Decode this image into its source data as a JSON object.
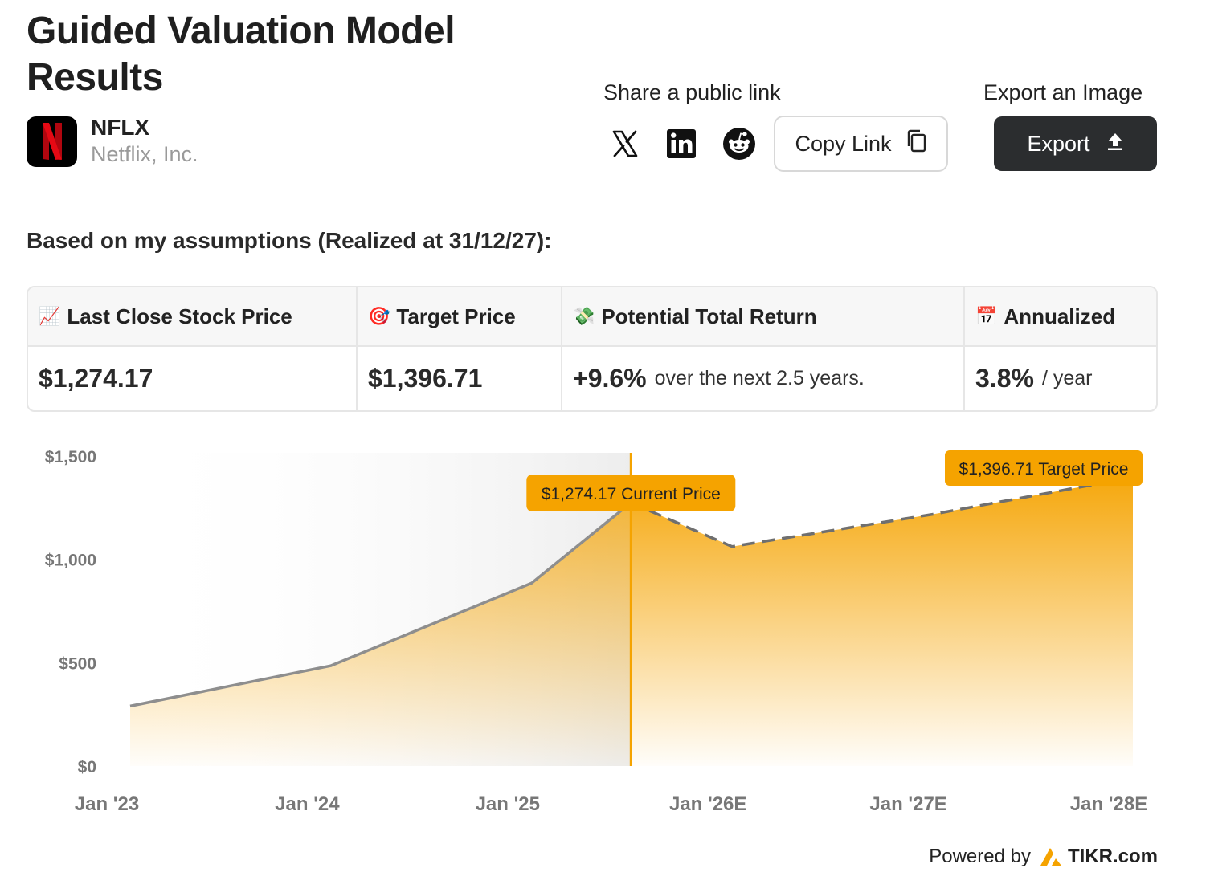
{
  "header": {
    "title": "Guided Valuation Model Results",
    "ticker": "NFLX",
    "company": "Netflix, Inc."
  },
  "share": {
    "label": "Share a public link",
    "copy_label": "Copy Link",
    "icons": [
      "x-icon",
      "linkedin-icon",
      "reddit-icon",
      "copy-icon"
    ]
  },
  "export": {
    "label": "Export an Image",
    "button_label": "Export"
  },
  "assumptions_text": "Based on my assumptions (Realized at 31/12/27):",
  "metrics": [
    {
      "emoji": "📈",
      "label": "Last Close Stock Price",
      "value": "$1,274.17",
      "suffix": ""
    },
    {
      "emoji": "🎯",
      "label": "Target Price",
      "value": "$1,396.71",
      "suffix": ""
    },
    {
      "emoji": "💸",
      "label": "Potential Total Return",
      "value": "+9.6%",
      "suffix": "over the next 2.5 years."
    },
    {
      "emoji": "📅",
      "label": "Annualized",
      "value": "3.8%",
      "suffix": "/ year"
    }
  ],
  "colors": {
    "accent": "#f5a300",
    "historical_line": "#8e8e8e",
    "dark_button": "#2b2d2f"
  },
  "chart_data": {
    "type": "area",
    "x_ticks": [
      "Jan '23",
      "Jan '24",
      "Jan '25",
      "Jan '26E",
      "Jan '27E",
      "Jan '28E"
    ],
    "y_ticks": [
      "$0",
      "$500",
      "$1,000",
      "$1,500"
    ],
    "ylim": [
      0,
      1500
    ],
    "x_domain": [
      "2023-01-01",
      "2028-01-01"
    ],
    "series": [
      {
        "kind": "historical",
        "points": [
          {
            "x": "2023-01-01",
            "y": 290
          },
          {
            "x": "2024-01-01",
            "y": 485
          },
          {
            "x": "2025-01-01",
            "y": 885
          },
          {
            "x": "2025-07-01",
            "y": 1274.17
          }
        ]
      },
      {
        "kind": "projected",
        "points": [
          {
            "x": "2025-07-01",
            "y": 1274.17
          },
          {
            "x": "2026-01-01",
            "y": 1062
          },
          {
            "x": "2027-01-01",
            "y": 1218
          },
          {
            "x": "2028-01-01",
            "y": 1396.71
          }
        ]
      }
    ],
    "current_marker": {
      "x": "2025-07-01",
      "label": "$1,274.17 Current Price"
    },
    "target_marker": {
      "x": "2028-01-01",
      "label": "$1,396.71 Target Price"
    }
  },
  "footer": {
    "powered_by": "Powered by",
    "brand": "TIKR.com"
  }
}
